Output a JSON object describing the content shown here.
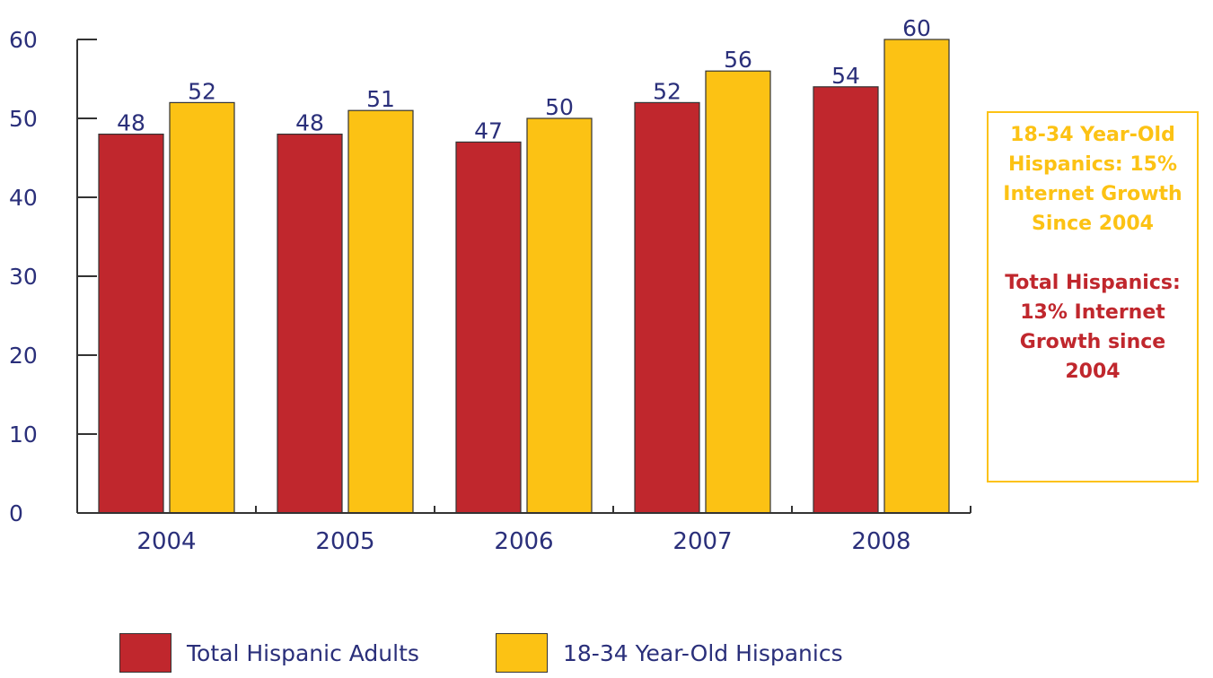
{
  "chart_data": {
    "type": "bar",
    "categories": [
      "2004",
      "2005",
      "2006",
      "2007",
      "2008"
    ],
    "series": [
      {
        "name": "Total Hispanic Adults",
        "values": [
          48,
          48,
          47,
          52,
          54
        ],
        "color": "#c0272d"
      },
      {
        "name": "18-34 Year-Old Hispanics",
        "values": [
          52,
          51,
          50,
          56,
          60
        ],
        "color": "#fcc214"
      }
    ],
    "ylim": [
      0,
      60
    ],
    "yticks": [
      0,
      10,
      20,
      30,
      40,
      50,
      60
    ],
    "grid": false,
    "legend_position": "bottom"
  },
  "callout": {
    "youth_lines": [
      "18-34 Year-Old",
      "Hispanics: 15%",
      "Internet Growth",
      "Since 2004"
    ],
    "total_lines": [
      "Total Hispanics:",
      "13% Internet",
      "Growth since",
      "2004"
    ],
    "border_color": "#fcc214",
    "youth_color": "#fcc214",
    "total_color": "#c0272d"
  },
  "legend": {
    "total_label": "Total Hispanic Adults",
    "youth_label": "18-34 Year-Old Hispanics"
  }
}
